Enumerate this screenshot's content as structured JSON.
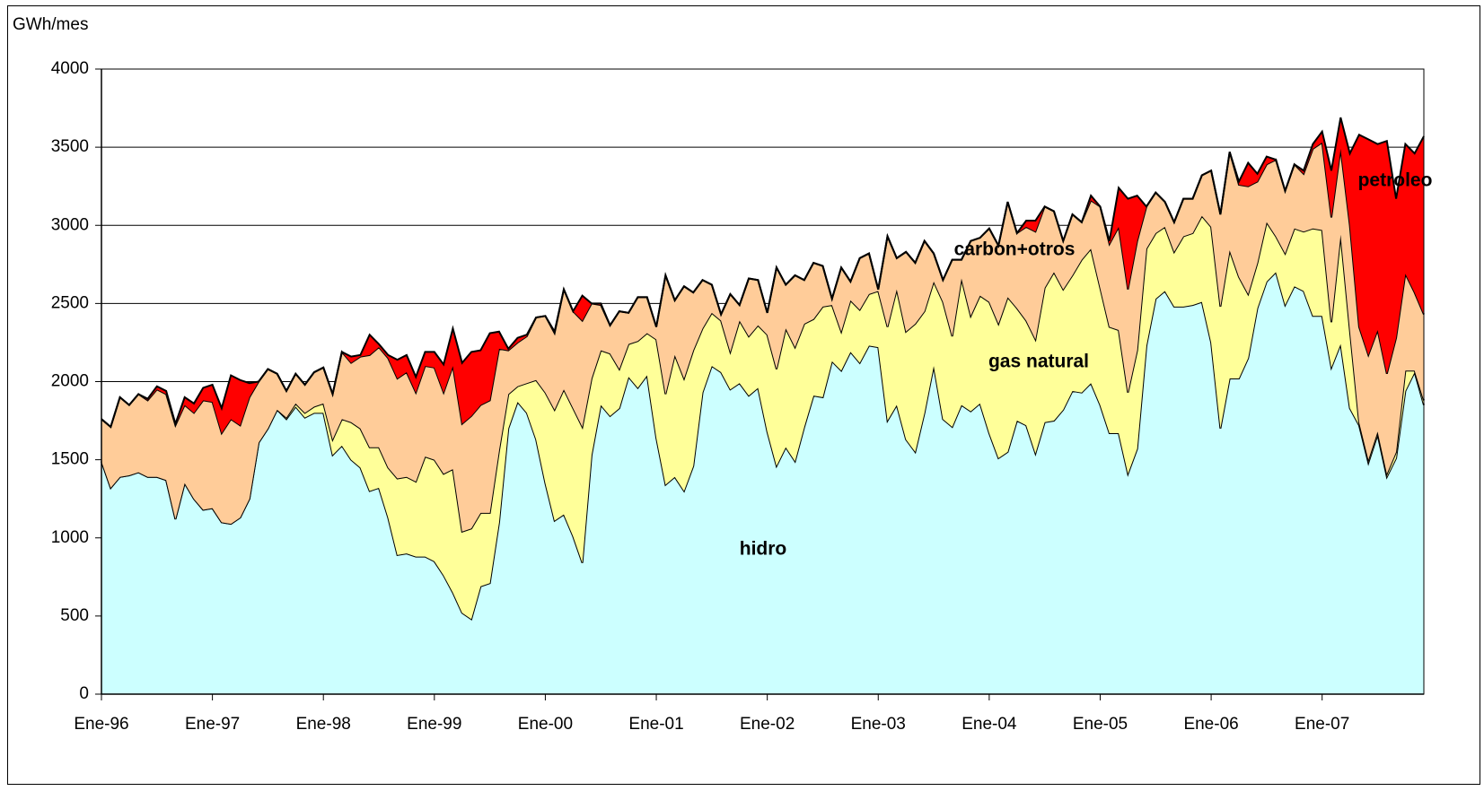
{
  "chart_data": {
    "type": "stacked-area",
    "ylabel": "GWh/mes",
    "categories": [
      "Ene-96",
      null,
      null,
      null,
      null,
      null,
      null,
      null,
      null,
      null,
      null,
      null,
      "Ene-97",
      null,
      null,
      null,
      null,
      null,
      null,
      null,
      null,
      null,
      null,
      null,
      "Ene-98",
      null,
      null,
      null,
      null,
      null,
      null,
      null,
      null,
      null,
      null,
      null,
      "Ene-99",
      null,
      null,
      null,
      null,
      null,
      null,
      null,
      null,
      null,
      null,
      null,
      "Ene-00",
      null,
      null,
      null,
      null,
      null,
      null,
      null,
      null,
      null,
      null,
      null,
      "Ene-01",
      null,
      null,
      null,
      null,
      null,
      null,
      null,
      null,
      null,
      null,
      null,
      "Ene-02",
      null,
      null,
      null,
      null,
      null,
      null,
      null,
      null,
      null,
      null,
      null,
      "Ene-03",
      null,
      null,
      null,
      null,
      null,
      null,
      null,
      null,
      null,
      null,
      null,
      "Ene-04",
      null,
      null,
      null,
      null,
      null,
      null,
      null,
      null,
      null,
      null,
      null,
      "Ene-05",
      null,
      null,
      null,
      null,
      null,
      null,
      null,
      null,
      null,
      null,
      null,
      "Ene-06",
      null,
      null,
      null,
      null,
      null,
      null,
      null,
      null,
      null,
      null,
      null,
      "Ene-07",
      null,
      null,
      null,
      null,
      null,
      null,
      null,
      null,
      null,
      null,
      null
    ],
    "series": [
      {
        "name": "hidro",
        "color": "#ccffff",
        "values": [
          1490,
          1320,
          1390,
          1400,
          1420,
          1390,
          1390,
          1370,
          1120,
          1350,
          1250,
          1180,
          1190,
          1100,
          1090,
          1130,
          1250,
          1610,
          1700,
          1820,
          1760,
          1840,
          1770,
          1800,
          1800,
          1530,
          1590,
          1500,
          1450,
          1300,
          1320,
          1130,
          890,
          900,
          880,
          880,
          850,
          760,
          650,
          520,
          480,
          690,
          710,
          1100,
          1700,
          1870,
          1800,
          1630,
          1350,
          1110,
          1150,
          1010,
          840,
          1530,
          1850,
          1780,
          1830,
          2030,
          1960,
          2040,
          1640,
          1340,
          1390,
          1300,
          1460,
          1930,
          2100,
          2060,
          1950,
          1990,
          1910,
          1960,
          1680,
          1460,
          1580,
          1490,
          1710,
          1910,
          1900,
          2130,
          2070,
          2190,
          2120,
          2230,
          2220,
          1750,
          1850,
          1630,
          1550,
          1800,
          2100,
          1760,
          1710,
          1850,
          1810,
          1860,
          1670,
          1510,
          1550,
          1750,
          1720,
          1540,
          1740,
          1750,
          1820,
          1940,
          1930,
          1990,
          1850,
          1670,
          1670,
          1410,
          1570,
          2230,
          2530,
          2580,
          2480,
          2480,
          2490,
          2510,
          2250,
          1700,
          2020,
          2020,
          2150,
          2470,
          2640,
          2700,
          2490,
          2610,
          2580,
          2420,
          2420,
          2090,
          2240,
          1830,
          1720,
          1480,
          1660,
          1390,
          1510,
          1940,
          2060,
          1850
        ]
      },
      {
        "name": "gas natural",
        "color": "#ffff99",
        "values": [
          0,
          0,
          0,
          0,
          0,
          0,
          0,
          0,
          0,
          0,
          0,
          0,
          0,
          0,
          0,
          0,
          0,
          0,
          0,
          0,
          10,
          20,
          30,
          40,
          60,
          100,
          170,
          240,
          250,
          280,
          260,
          320,
          490,
          490,
          480,
          640,
          650,
          650,
          790,
          520,
          580,
          470,
          450,
          460,
          220,
          100,
          190,
          380,
          580,
          710,
          800,
          820,
          870,
          490,
          350,
          400,
          250,
          210,
          300,
          270,
          630,
          580,
          780,
          720,
          740,
          410,
          340,
          330,
          240,
          400,
          380,
          400,
          620,
          620,
          760,
          730,
          660,
          490,
          580,
          360,
          250,
          330,
          340,
          330,
          360,
          600,
          740,
          690,
          820,
          650,
          540,
          750,
          580,
          810,
          610,
          690,
          840,
          860,
          990,
          720,
          670,
          730,
          860,
          950,
          770,
          740,
          850,
          860,
          750,
          680,
          660,
          520,
          630,
          620,
          420,
          410,
          350,
          450,
          460,
          550,
          740,
          780,
          820,
          650,
          410,
          290,
          380,
          230,
          330,
          370,
          380,
          560,
          550,
          290,
          700,
          500,
          20,
          20,
          20,
          20,
          40,
          130,
          10,
          30
        ]
      },
      {
        "name": "carbon+otros",
        "color": "#ffcc99",
        "values": [
          270,
          390,
          510,
          450,
          500,
          490,
          560,
          550,
          600,
          500,
          550,
          700,
          680,
          570,
          670,
          590,
          650,
          390,
          380,
          230,
          170,
          190,
          180,
          220,
          230,
          290,
          430,
          380,
          460,
          590,
          640,
          700,
          640,
          670,
          570,
          580,
          590,
          520,
          660,
          690,
          720,
          690,
          720,
          650,
          280,
          280,
          300,
          400,
          490,
          490,
          640,
          620,
          680,
          480,
          290,
          180,
          370,
          200,
          280,
          230,
          80,
          760,
          350,
          590,
          370,
          310,
          180,
          40,
          370,
          100,
          370,
          290,
          140,
          650,
          280,
          460,
          280,
          360,
          260,
          40,
          410,
          120,
          330,
          260,
          10,
          580,
          200,
          510,
          390,
          450,
          180,
          140,
          490,
          120,
          480,
          370,
          470,
          500,
          610,
          480,
          600,
          690,
          520,
          390,
          310,
          390,
          240,
          310,
          520,
          530,
          660,
          660,
          700,
          270,
          260,
          160,
          190,
          240,
          220,
          260,
          360,
          590,
          630,
          590,
          690,
          520,
          370,
          490,
          400,
          410,
          370,
          510,
          560,
          670,
          550,
          670,
          610,
          670,
          650,
          640,
          730,
          620,
          500,
          550
        ]
      },
      {
        "name": "petroleo",
        "color": "#ff0000",
        "values": [
          0,
          0,
          0,
          0,
          0,
          10,
          20,
          20,
          10,
          50,
          60,
          80,
          110,
          160,
          280,
          290,
          90,
          0,
          0,
          0,
          0,
          0,
          0,
          0,
          0,
          0,
          0,
          40,
          10,
          130,
          20,
          20,
          120,
          110,
          100,
          90,
          100,
          180,
          240,
          390,
          410,
          350,
          430,
          110,
          10,
          30,
          10,
          0,
          0,
          10,
          0,
          0,
          160,
          0,
          10,
          0,
          0,
          0,
          0,
          0,
          0,
          0,
          0,
          0,
          0,
          0,
          0,
          0,
          0,
          0,
          0,
          0,
          0,
          0,
          0,
          0,
          0,
          0,
          0,
          0,
          0,
          0,
          0,
          0,
          0,
          0,
          0,
          0,
          0,
          0,
          0,
          0,
          0,
          0,
          0,
          0,
          0,
          0,
          0,
          0,
          40,
          70,
          0,
          0,
          0,
          0,
          0,
          30,
          0,
          20,
          250,
          580,
          290,
          0,
          0,
          0,
          0,
          0,
          0,
          0,
          0,
          0,
          0,
          20,
          150,
          50,
          50,
          0,
          0,
          0,
          20,
          30,
          70,
          300,
          200,
          460,
          1230,
          1380,
          1190,
          1490,
          890,
          830,
          890,
          1140
        ]
      }
    ],
    "ylim": [
      0,
      4000
    ],
    "yticks": [
      0,
      500,
      1000,
      1500,
      2000,
      2500,
      3000,
      3500,
      4000
    ],
    "grid": true
  }
}
